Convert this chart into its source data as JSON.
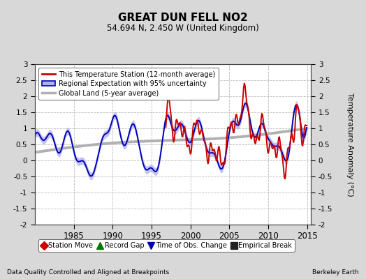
{
  "title": "GREAT DUN FELL NO2",
  "subtitle": "54.694 N, 2.450 W (United Kingdom)",
  "xlabel_left": "Data Quality Controlled and Aligned at Breakpoints",
  "xlabel_right": "Berkeley Earth",
  "ylabel": "Temperature Anomaly (°C)",
  "xlim": [
    1980.0,
    2015.5
  ],
  "ylim": [
    -2.0,
    3.0
  ],
  "yticks": [
    -2,
    -1.5,
    -1,
    -0.5,
    0,
    0.5,
    1,
    1.5,
    2,
    2.5,
    3
  ],
  "xticks": [
    1985,
    1990,
    1995,
    2000,
    2005,
    2010,
    2015
  ],
  "bg_color": "#d8d8d8",
  "plot_bg_color": "#ffffff",
  "grid_color": "#bbbbbb",
  "red_color": "#cc0000",
  "blue_color": "#0000bb",
  "blue_fill_color": "#b0b0ee",
  "gray_color": "#b0b0b0",
  "legend_items": [
    "This Temperature Station (12-month average)",
    "Regional Expectation with 95% uncertainty",
    "Global Land (5-year average)"
  ],
  "bottom_legend": [
    {
      "marker": "D",
      "color": "#cc0000",
      "label": "Station Move"
    },
    {
      "marker": "^",
      "color": "#007700",
      "label": "Record Gap"
    },
    {
      "marker": "v",
      "color": "#0000bb",
      "label": "Time of Obs. Change"
    },
    {
      "marker": "s",
      "color": "#222222",
      "label": "Empirical Break"
    }
  ]
}
